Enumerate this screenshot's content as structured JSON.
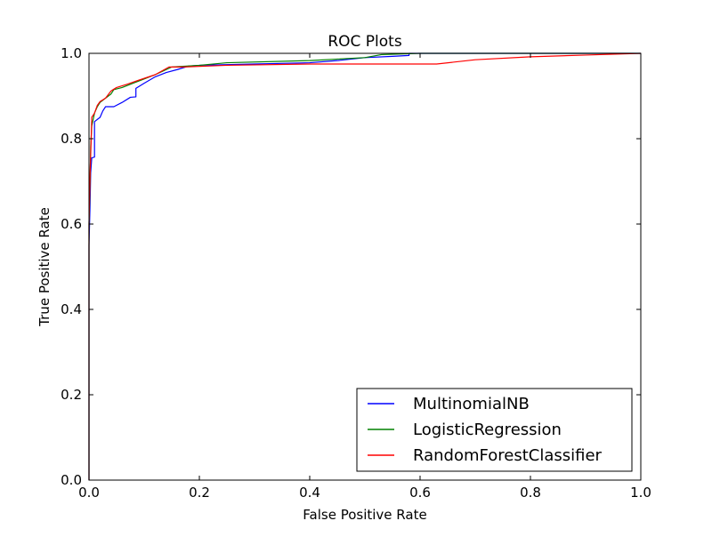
{
  "chart_data": {
    "type": "line",
    "title": "ROC Plots",
    "xlabel": "False Positive Rate",
    "ylabel": "True Positive Rate",
    "xlim": [
      0.0,
      1.0
    ],
    "ylim": [
      0.0,
      1.0
    ],
    "xticks": [
      "0.0",
      "0.2",
      "0.4",
      "0.6",
      "0.8",
      "1.0"
    ],
    "yticks": [
      "0.0",
      "0.2",
      "0.4",
      "0.6",
      "0.8",
      "1.0"
    ],
    "grid": false,
    "legend_position": "lower-right",
    "series": [
      {
        "name": "MultinomialNB",
        "color": "#0000ff",
        "points": [
          [
            0.0,
            0.0
          ],
          [
            0.0,
            0.2
          ],
          [
            0.0,
            0.4
          ],
          [
            0.0,
            0.55
          ],
          [
            0.002,
            0.65
          ],
          [
            0.003,
            0.72
          ],
          [
            0.005,
            0.755
          ],
          [
            0.01,
            0.757
          ],
          [
            0.01,
            0.84
          ],
          [
            0.015,
            0.845
          ],
          [
            0.02,
            0.85
          ],
          [
            0.025,
            0.865
          ],
          [
            0.03,
            0.875
          ],
          [
            0.045,
            0.875
          ],
          [
            0.06,
            0.885
          ],
          [
            0.075,
            0.897
          ],
          [
            0.085,
            0.898
          ],
          [
            0.085,
            0.918
          ],
          [
            0.1,
            0.93
          ],
          [
            0.12,
            0.945
          ],
          [
            0.14,
            0.955
          ],
          [
            0.16,
            0.962
          ],
          [
            0.18,
            0.97
          ],
          [
            0.2,
            0.972
          ],
          [
            0.3,
            0.975
          ],
          [
            0.4,
            0.978
          ],
          [
            0.45,
            0.983
          ],
          [
            0.5,
            0.99
          ],
          [
            0.55,
            0.993
          ],
          [
            0.58,
            0.995
          ],
          [
            0.58,
            1.0
          ],
          [
            1.0,
            1.0
          ]
        ]
      },
      {
        "name": "LogisticRegression",
        "color": "#008000",
        "points": [
          [
            0.0,
            0.0
          ],
          [
            0.0,
            0.3
          ],
          [
            0.0,
            0.6
          ],
          [
            0.002,
            0.7
          ],
          [
            0.003,
            0.78
          ],
          [
            0.005,
            0.83
          ],
          [
            0.01,
            0.86
          ],
          [
            0.015,
            0.875
          ],
          [
            0.02,
            0.885
          ],
          [
            0.03,
            0.895
          ],
          [
            0.04,
            0.905
          ],
          [
            0.045,
            0.915
          ],
          [
            0.06,
            0.92
          ],
          [
            0.08,
            0.93
          ],
          [
            0.1,
            0.94
          ],
          [
            0.12,
            0.95
          ],
          [
            0.15,
            0.968
          ],
          [
            0.2,
            0.972
          ],
          [
            0.25,
            0.978
          ],
          [
            0.4,
            0.983
          ],
          [
            0.5,
            0.99
          ],
          [
            0.53,
            0.997
          ],
          [
            0.6,
            1.0
          ],
          [
            1.0,
            1.0
          ]
        ]
      },
      {
        "name": "RandomForestClassifier",
        "color": "#ff0000",
        "points": [
          [
            0.0,
            0.0
          ],
          [
            0.0,
            0.3
          ],
          [
            0.0,
            0.6
          ],
          [
            0.002,
            0.72
          ],
          [
            0.004,
            0.8
          ],
          [
            0.005,
            0.85
          ],
          [
            0.01,
            0.86
          ],
          [
            0.015,
            0.878
          ],
          [
            0.02,
            0.887
          ],
          [
            0.03,
            0.895
          ],
          [
            0.04,
            0.912
          ],
          [
            0.05,
            0.92
          ],
          [
            0.07,
            0.928
          ],
          [
            0.09,
            0.937
          ],
          [
            0.12,
            0.95
          ],
          [
            0.145,
            0.968
          ],
          [
            0.17,
            0.968
          ],
          [
            0.25,
            0.972
          ],
          [
            0.4,
            0.975
          ],
          [
            0.5,
            0.975
          ],
          [
            0.63,
            0.975
          ],
          [
            0.7,
            0.985
          ],
          [
            0.8,
            0.992
          ],
          [
            0.9,
            0.996
          ],
          [
            1.0,
            1.0
          ]
        ]
      }
    ]
  }
}
